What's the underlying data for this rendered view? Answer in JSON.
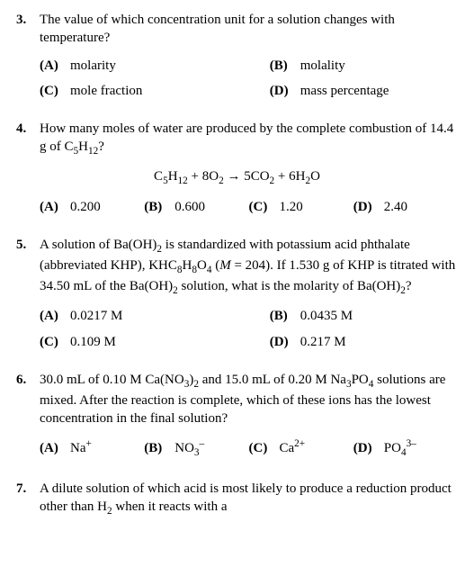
{
  "questions": [
    {
      "num": "3.",
      "text": "The value of which concentration unit for a solution changes with temperature?",
      "layout": "2col",
      "choices": [
        {
          "letter": "(A)",
          "text": "molarity"
        },
        {
          "letter": "(B)",
          "text": "molality"
        },
        {
          "letter": "(C)",
          "text": "mole fraction"
        },
        {
          "letter": "(D)",
          "text": "mass percentage"
        }
      ]
    },
    {
      "num": "4.",
      "text_html": "How many moles of water are produced by the complete combustion of 14.4 g of C<sub>5</sub>H<sub>12</sub>?",
      "equation_html": "C<sub>5</sub>H<sub>12</sub> + 8O<sub>2</sub> → 5CO<sub>2</sub> + 6H<sub>2</sub>O",
      "layout": "4col",
      "choices": [
        {
          "letter": "(A)",
          "text": "0.200"
        },
        {
          "letter": "(B)",
          "text": "0.600"
        },
        {
          "letter": "(C)",
          "text": "1.20"
        },
        {
          "letter": "(D)",
          "text": "2.40"
        }
      ]
    },
    {
      "num": "5.",
      "text_html": "A solution of Ba(OH)<sub>2</sub> is standardized with potassium acid phthalate (abbreviated KHP), KHC<sub>8</sub>H<sub>8</sub>O<sub>4</sub> (<i>M</i> = 204). If 1.530 g of KHP is titrated with 34.50 mL of the Ba(OH)<sub>2</sub> solution, what is the molarity of Ba(OH)<sub>2</sub>?",
      "layout": "2col",
      "choices": [
        {
          "letter": "(A)",
          "text": "0.0217 M"
        },
        {
          "letter": "(B)",
          "text": "0.0435 M"
        },
        {
          "letter": "(C)",
          "text": "0.109 M"
        },
        {
          "letter": "(D)",
          "text": "0.217 M"
        }
      ]
    },
    {
      "num": "6.",
      "text_html": "30.0 mL of 0.10 M Ca(NO<sub>3</sub>)<sub>2</sub> and 15.0 mL of 0.20 M Na<sub>3</sub>PO<sub>4</sub> solutions are mixed. After the reaction is complete, which of these ions has the lowest concentration in the final solution?",
      "layout": "4col",
      "choices": [
        {
          "letter": "(A)",
          "text_html": "Na<sup>+</sup>"
        },
        {
          "letter": "(B)",
          "text_html": "NO<sub>3</sub><sup>–</sup>"
        },
        {
          "letter": "(C)",
          "text_html": "Ca<sup>2+</sup>"
        },
        {
          "letter": "(D)",
          "text_html": "PO<sub>4</sub><sup>3–</sup>"
        }
      ]
    },
    {
      "num": "7.",
      "text_html": "A dilute solution of which acid is most likely to produce a reduction product other than H<sub>2</sub> when it reacts with a",
      "layout": "none",
      "choices": []
    }
  ]
}
